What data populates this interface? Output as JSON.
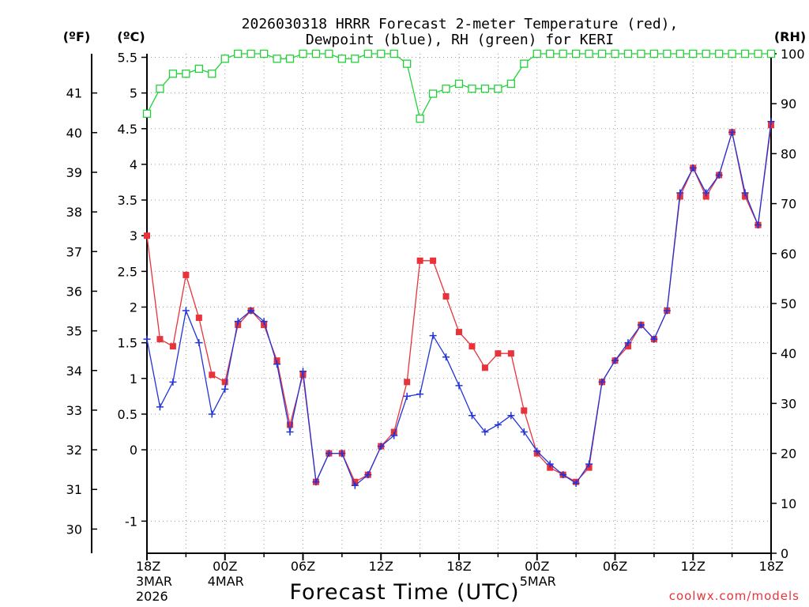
{
  "chart_data": {
    "type": "line",
    "title_line1": "2026030318 HRRR Forecast 2-meter Temperature (red),",
    "title_line2": "Dewpoint (blue), RH (green) for KERI",
    "unit_f_label": "(ºF)",
    "unit_c_label": "(ºC)",
    "unit_rh_label": "(RH)",
    "xlabel": "Forecast Time (UTC)",
    "credit": "coolwx.com/models",
    "grid": true,
    "x_range_hours": [
      0,
      48
    ],
    "c_range": [
      -1.45,
      5.55
    ],
    "rh_range": [
      0,
      100
    ],
    "x_ticks": [
      {
        "h": 0,
        "l1": "18Z",
        "l2": "3MAR",
        "l3": "2026"
      },
      {
        "h": 6,
        "l1": "00Z",
        "l2": "4MAR",
        "l3": ""
      },
      {
        "h": 12,
        "l1": "06Z",
        "l2": "",
        "l3": ""
      },
      {
        "h": 18,
        "l1": "12Z",
        "l2": "",
        "l3": ""
      },
      {
        "h": 24,
        "l1": "18Z",
        "l2": "",
        "l3": ""
      },
      {
        "h": 30,
        "l1": "00Z",
        "l2": "5MAR",
        "l3": ""
      },
      {
        "h": 36,
        "l1": "06Z",
        "l2": "",
        "l3": ""
      },
      {
        "h": 42,
        "l1": "12Z",
        "l2": "",
        "l3": ""
      },
      {
        "h": 48,
        "l1": "18Z",
        "l2": "",
        "l3": ""
      }
    ],
    "c_ticks": [
      "-1",
      "0",
      "0.5",
      "1",
      "1.5",
      "2",
      "2.5",
      "3",
      "3.5",
      "4",
      "4.5",
      "5",
      "5.5"
    ],
    "c_tick_values": [
      -1,
      0,
      0.5,
      1,
      1.5,
      2,
      2.5,
      3,
      3.5,
      4,
      4.5,
      5,
      5.5
    ],
    "f_ticks": [
      "30",
      "31",
      "32",
      "33",
      "34",
      "35",
      "36",
      "37",
      "38",
      "39",
      "40",
      "41"
    ],
    "f_tick_values": [
      30,
      31,
      32,
      33,
      34,
      35,
      36,
      37,
      38,
      39,
      40,
      41
    ],
    "rh_ticks": [
      "0",
      "10",
      "20",
      "30",
      "40",
      "50",
      "60",
      "70",
      "80",
      "90",
      "100"
    ],
    "rh_tick_values": [
      0,
      10,
      20,
      30,
      40,
      50,
      60,
      70,
      80,
      90,
      100
    ],
    "series": [
      {
        "name": "Temperature",
        "color": "#e8333b",
        "marker": "square-filled",
        "values": [
          3.0,
          1.55,
          1.45,
          2.45,
          1.85,
          1.05,
          0.95,
          1.75,
          1.95,
          1.75,
          1.25,
          0.35,
          1.05,
          -0.45,
          -0.05,
          -0.05,
          -0.45,
          -0.35,
          0.05,
          0.25,
          0.95,
          2.65,
          2.65,
          2.15,
          1.65,
          1.45,
          1.15,
          1.35,
          1.35,
          0.55,
          -0.05,
          -0.25,
          -0.35,
          -0.45,
          -0.25,
          0.95,
          1.25,
          1.45,
          1.75,
          1.55,
          1.95,
          3.55,
          3.95,
          3.55,
          3.85,
          4.45,
          3.55,
          3.15,
          4.55
        ]
      },
      {
        "name": "Dewpoint",
        "color": "#2233d9",
        "marker": "plus",
        "values": [
          1.55,
          0.6,
          0.95,
          1.95,
          1.5,
          0.5,
          0.85,
          1.8,
          1.95,
          1.8,
          1.2,
          0.25,
          1.1,
          -0.45,
          -0.05,
          -0.05,
          -0.5,
          -0.35,
          0.05,
          0.2,
          0.75,
          0.78,
          1.6,
          1.3,
          0.9,
          0.48,
          0.25,
          0.35,
          0.48,
          0.25,
          -0.02,
          -0.2,
          -0.35,
          -0.47,
          -0.2,
          0.95,
          1.25,
          1.5,
          1.75,
          1.55,
          1.95,
          3.6,
          3.95,
          3.6,
          3.85,
          4.45,
          3.6,
          3.15,
          4.6
        ]
      },
      {
        "name": "RH",
        "color": "#22d13a",
        "marker": "square-open",
        "axis": "rh",
        "values": [
          88,
          93,
          96,
          96,
          97,
          96,
          99,
          100,
          100,
          100,
          99,
          99,
          100,
          100,
          100,
          99,
          99,
          100,
          100,
          100,
          98,
          87,
          92,
          93,
          94,
          93,
          93,
          93,
          94,
          98,
          100,
          100,
          100,
          100,
          100,
          100,
          100,
          100,
          100,
          100,
          100,
          100,
          100,
          100,
          100,
          100,
          100,
          100,
          100
        ]
      }
    ]
  }
}
